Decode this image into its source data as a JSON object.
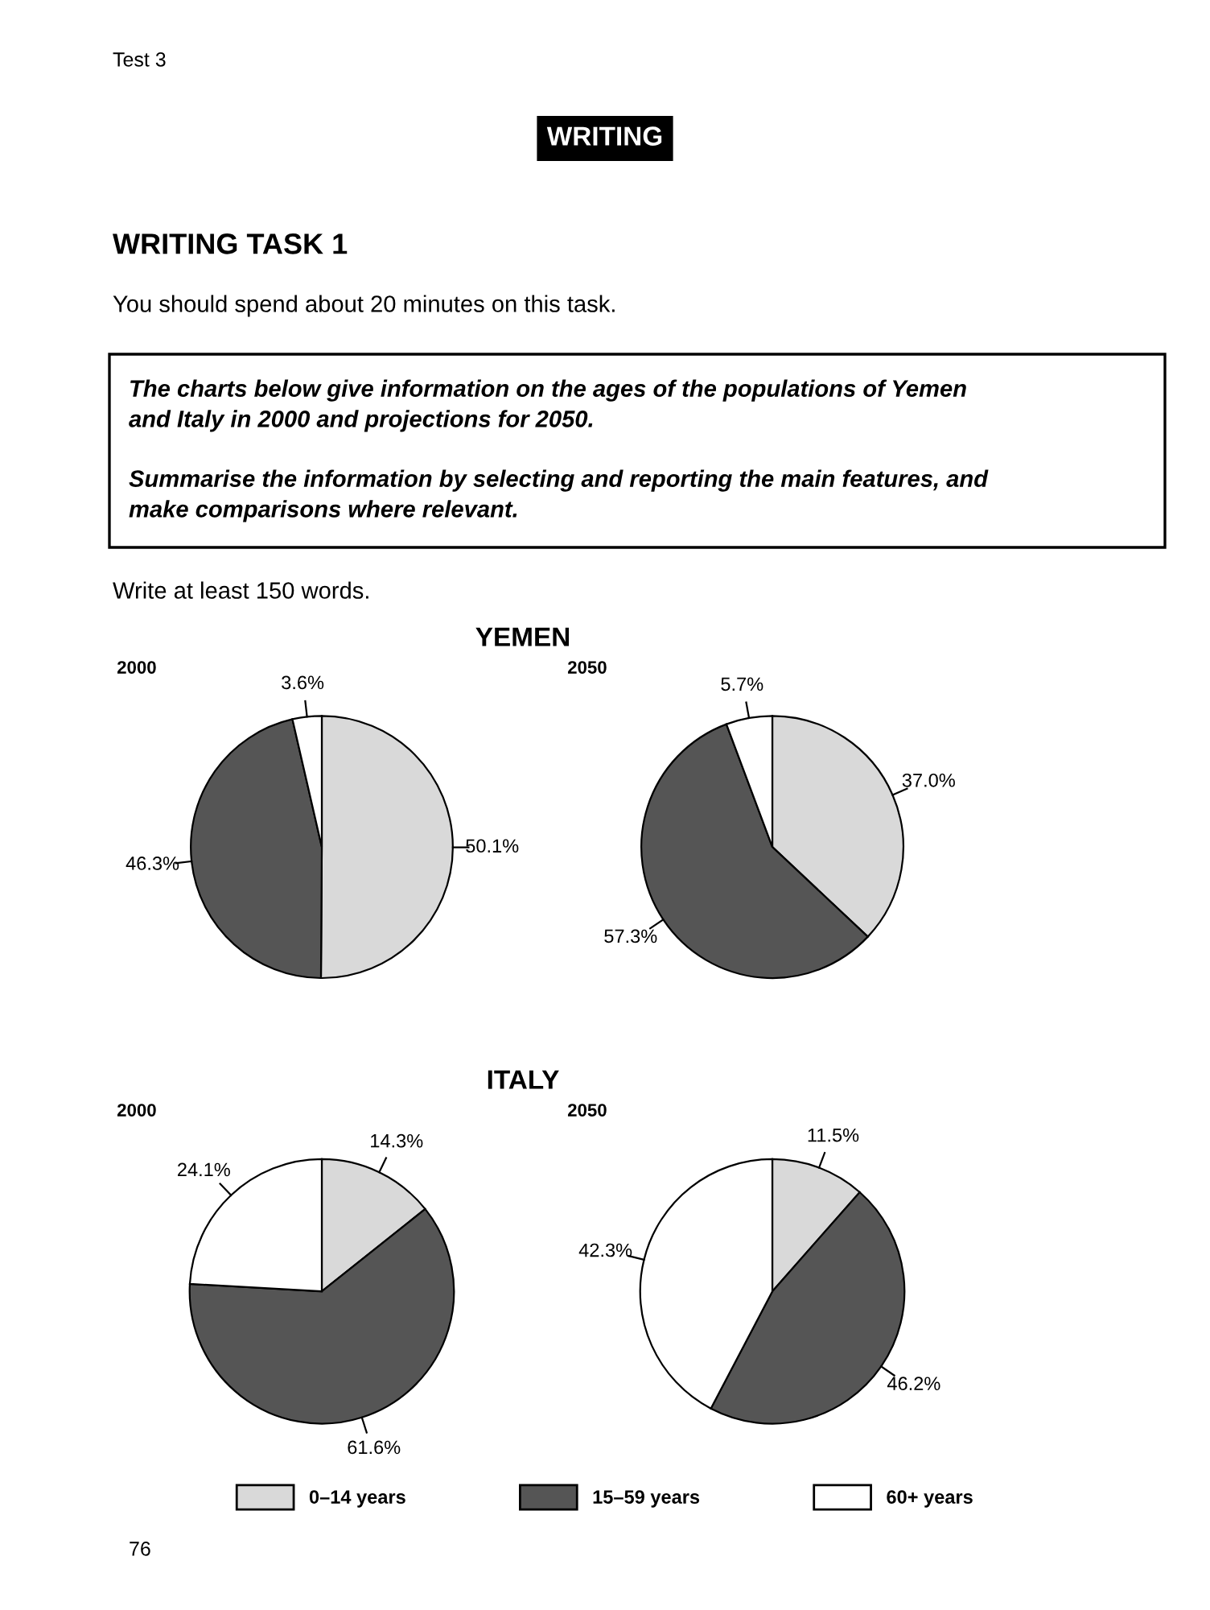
{
  "chart_data": [
    {
      "type": "pie",
      "title": "2000",
      "categories": [
        "0–14 years",
        "15–59 years",
        "60+ years"
      ],
      "values": [
        50.1,
        46.3,
        3.6
      ],
      "value_labels": [
        "50.1%",
        "46.3%",
        "3.6%"
      ],
      "colors": [
        "#d9d9d9",
        "#555555",
        "#ffffff"
      ],
      "legend": "bottom",
      "annotations": [
        "Test 3",
        "WRITING",
        "WRITING TASK 1",
        "You should spend about 20 minutes on this task.",
        "The charts below give information on the ages of the populations of Yemen\nand Italy in 2000 and projections for 2050.",
        "Summarise the information by selecting and reporting the main features, and\nmake comparisons where relevant.",
        "Write at least 150 words.",
        "YEMEN",
        "76"
      ]
    },
    {
      "type": "pie",
      "title": "2050",
      "categories": [
        null,
        null,
        null
      ],
      "values": [
        37.0,
        57.3,
        5.7
      ],
      "value_labels": [
        "37.0%",
        "57.3%",
        "5.7%"
      ],
      "colors": [
        "#d9d9d9",
        "#555555",
        "#ffffff"
      ]
    },
    {
      "type": "pie",
      "title": "2000",
      "categories": [
        null,
        null,
        null
      ],
      "values": [
        14.3,
        61.6,
        24.1
      ],
      "value_labels": [
        "14.3%",
        "61.6%",
        "24.1%"
      ],
      "colors": [
        "#d9d9d9",
        "#555555",
        "#ffffff"
      ],
      "annotations": [
        "ITALY"
      ]
    },
    {
      "type": "pie",
      "title": "2050",
      "categories": [
        null,
        null,
        null
      ],
      "values": [
        11.5,
        46.2,
        42.3
      ],
      "value_labels": [
        "11.5%",
        "46.2%",
        "42.3%"
      ],
      "colors": [
        "#d9d9d9",
        "#555555",
        "#ffffff"
      ]
    }
  ]
}
